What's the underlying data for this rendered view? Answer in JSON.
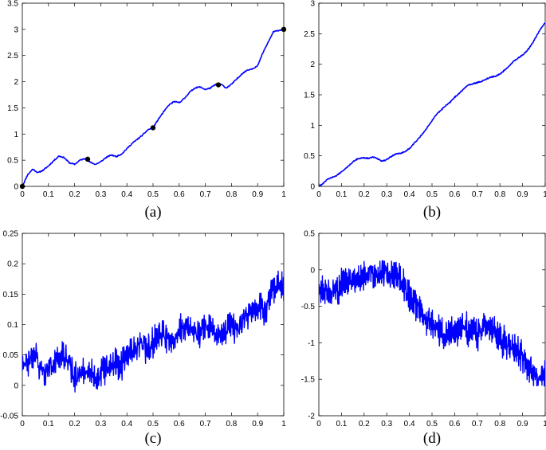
{
  "chart_data": [
    {
      "type": "line",
      "caption": "(a)",
      "xlim": [
        0,
        1
      ],
      "ylim": [
        0,
        3.5
      ],
      "xticks": [
        "0",
        "0.1",
        "0.2",
        "0.3",
        "0.4",
        "0.5",
        "0.6",
        "0.7",
        "0.8",
        "0.9",
        "1"
      ],
      "yticks": [
        "0",
        "0.5",
        "1",
        "1.5",
        "2",
        "2.5",
        "3",
        "3.5"
      ],
      "line_color": "#0000ff",
      "marker_color": "#000000",
      "series": [
        {
          "x": [
            0,
            0.02,
            0.04,
            0.06,
            0.08,
            0.1,
            0.12,
            0.14,
            0.16,
            0.18,
            0.2,
            0.22,
            0.24,
            0.26,
            0.28,
            0.3,
            0.32,
            0.34,
            0.36,
            0.38,
            0.4,
            0.42,
            0.44,
            0.46,
            0.48,
            0.5,
            0.52,
            0.54,
            0.56,
            0.58,
            0.6,
            0.62,
            0.64,
            0.66,
            0.68,
            0.7,
            0.72,
            0.74,
            0.76,
            0.78,
            0.8,
            0.82,
            0.84,
            0.86,
            0.88,
            0.9,
            0.92,
            0.94,
            0.96,
            0.98,
            1
          ],
          "y": [
            0,
            0.22,
            0.33,
            0.26,
            0.31,
            0.39,
            0.49,
            0.58,
            0.55,
            0.45,
            0.42,
            0.5,
            0.53,
            0.46,
            0.42,
            0.47,
            0.55,
            0.6,
            0.57,
            0.62,
            0.72,
            0.82,
            0.9,
            0.98,
            1.08,
            1.12,
            1.28,
            1.42,
            1.55,
            1.62,
            1.6,
            1.68,
            1.8,
            1.88,
            1.9,
            1.85,
            1.88,
            1.95,
            1.95,
            1.88,
            1.95,
            2.05,
            2.15,
            2.22,
            2.25,
            2.3,
            2.55,
            2.75,
            2.95,
            2.98,
            3.0
          ]
        }
      ],
      "markers": [
        {
          "x": 0,
          "y": 0
        },
        {
          "x": 0.25,
          "y": 0.52
        },
        {
          "x": 0.5,
          "y": 1.12
        },
        {
          "x": 0.75,
          "y": 1.94
        },
        {
          "x": 1,
          "y": 3.0
        }
      ]
    },
    {
      "type": "line",
      "caption": "(b)",
      "xlim": [
        0,
        1
      ],
      "ylim": [
        0,
        3
      ],
      "xticks": [
        "0",
        "0.1",
        "0.2",
        "0.3",
        "0.4",
        "0.5",
        "0.6",
        "0.7",
        "0.8",
        "0.9",
        "1"
      ],
      "yticks": [
        "0",
        "0.5",
        "1",
        "1.5",
        "2",
        "2.5",
        "3"
      ],
      "line_color": "#0000ff",
      "series": [
        {
          "x": [
            0,
            0.02,
            0.04,
            0.06,
            0.08,
            0.1,
            0.12,
            0.14,
            0.16,
            0.18,
            0.2,
            0.22,
            0.24,
            0.26,
            0.28,
            0.3,
            0.32,
            0.34,
            0.36,
            0.38,
            0.4,
            0.42,
            0.44,
            0.46,
            0.48,
            0.5,
            0.52,
            0.54,
            0.56,
            0.58,
            0.6,
            0.62,
            0.64,
            0.66,
            0.68,
            0.7,
            0.72,
            0.74,
            0.76,
            0.78,
            0.8,
            0.82,
            0.84,
            0.86,
            0.88,
            0.9,
            0.92,
            0.94,
            0.96,
            0.98,
            1
          ],
          "y": [
            0,
            0.05,
            0.12,
            0.15,
            0.18,
            0.24,
            0.3,
            0.36,
            0.43,
            0.46,
            0.47,
            0.46,
            0.48,
            0.45,
            0.41,
            0.44,
            0.49,
            0.53,
            0.54,
            0.57,
            0.62,
            0.7,
            0.78,
            0.87,
            0.97,
            1.08,
            1.18,
            1.25,
            1.32,
            1.38,
            1.46,
            1.52,
            1.6,
            1.66,
            1.68,
            1.7,
            1.72,
            1.76,
            1.79,
            1.8,
            1.84,
            1.9,
            1.97,
            2.05,
            2.1,
            2.15,
            2.22,
            2.32,
            2.45,
            2.58,
            2.68
          ]
        }
      ]
    },
    {
      "type": "line",
      "caption": "(c)",
      "xlim": [
        0,
        1
      ],
      "ylim": [
        -0.05,
        0.25
      ],
      "xticks": [
        "0",
        "0.1",
        "0.2",
        "0.3",
        "0.4",
        "0.5",
        "0.6",
        "0.7",
        "0.8",
        "0.9",
        "1"
      ],
      "yticks": [
        "-0.05",
        "0",
        "0.05",
        "0.1",
        "0.15",
        "0.2",
        "0.25"
      ],
      "line_color": "#0000ff",
      "series": [
        {
          "x": [
            0,
            0.025,
            0.05,
            0.075,
            0.1,
            0.125,
            0.15,
            0.175,
            0.2,
            0.225,
            0.25,
            0.275,
            0.3,
            0.325,
            0.35,
            0.375,
            0.4,
            0.425,
            0.45,
            0.475,
            0.5,
            0.525,
            0.55,
            0.575,
            0.6,
            0.625,
            0.65,
            0.675,
            0.7,
            0.725,
            0.75,
            0.775,
            0.8,
            0.825,
            0.85,
            0.875,
            0.9,
            0.925,
            0.95,
            0.975,
            1
          ],
          "y": [
            0.03,
            0.04,
            0.05,
            0.02,
            0.03,
            0.04,
            0.05,
            0.04,
            0.01,
            0.02,
            0.03,
            0.01,
            0.02,
            0.03,
            0.04,
            0.03,
            0.05,
            0.06,
            0.07,
            0.06,
            0.07,
            0.09,
            0.08,
            0.07,
            0.09,
            0.1,
            0.09,
            0.08,
            0.1,
            0.09,
            0.08,
            0.09,
            0.1,
            0.09,
            0.11,
            0.12,
            0.13,
            0.12,
            0.15,
            0.17,
            0.16
          ],
          "noise_amplitude": 0.025
        }
      ]
    },
    {
      "type": "line",
      "caption": "(d)",
      "xlim": [
        0,
        1
      ],
      "ylim": [
        -2,
        0.5
      ],
      "xticks": [
        "0",
        "0.1",
        "0.2",
        "0.3",
        "0.4",
        "0.5",
        "0.6",
        "0.7",
        "0.8",
        "0.9",
        "1"
      ],
      "yticks": [
        "-2",
        "-1.5",
        "-1",
        "-0.5",
        "0",
        "0.5"
      ],
      "line_color": "#0000ff",
      "series": [
        {
          "x": [
            0,
            0.025,
            0.05,
            0.075,
            0.1,
            0.125,
            0.15,
            0.175,
            0.2,
            0.225,
            0.25,
            0.275,
            0.3,
            0.325,
            0.35,
            0.375,
            0.4,
            0.425,
            0.45,
            0.475,
            0.5,
            0.525,
            0.55,
            0.575,
            0.6,
            0.625,
            0.65,
            0.675,
            0.7,
            0.725,
            0.75,
            0.775,
            0.8,
            0.825,
            0.85,
            0.875,
            0.9,
            0.925,
            0.95,
            0.975,
            1
          ],
          "y": [
            -0.3,
            -0.25,
            -0.35,
            -0.3,
            -0.2,
            -0.15,
            -0.1,
            -0.15,
            -0.05,
            0,
            -0.05,
            -0.1,
            0,
            -0.05,
            -0.1,
            -0.2,
            -0.35,
            -0.45,
            -0.6,
            -0.7,
            -0.75,
            -0.8,
            -0.9,
            -0.85,
            -0.9,
            -0.75,
            -0.8,
            -0.85,
            -0.9,
            -0.8,
            -0.75,
            -0.85,
            -0.95,
            -1.0,
            -1.05,
            -1.1,
            -1.2,
            -1.3,
            -1.45,
            -1.5,
            -1.35
          ],
          "noise_amplitude": 0.22
        }
      ]
    }
  ]
}
